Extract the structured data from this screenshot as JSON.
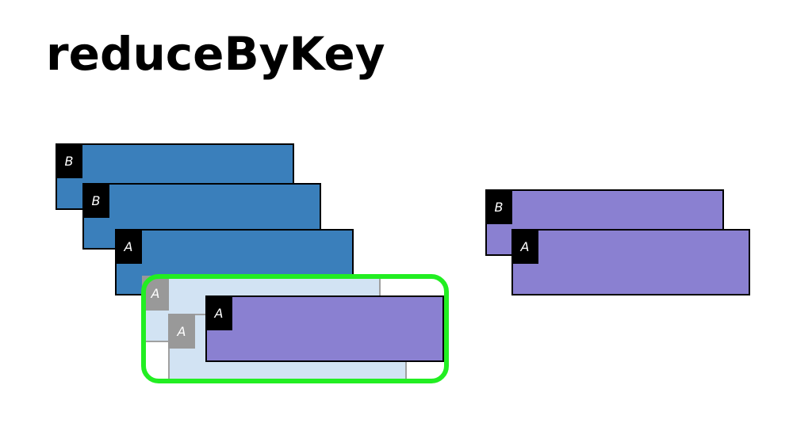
{
  "title": "reduceByKey",
  "colors": {
    "input_record": "#3a7fbb",
    "output_record": "#8a80d1",
    "ghost_record": "#d2e3f3",
    "highlight": "#22ee22",
    "key_label": "#000000",
    "ghost_key": "#999999"
  },
  "inputs": {
    "record_1": {
      "key": "B"
    },
    "record_2": {
      "key": "B"
    },
    "record_3": {
      "key": "A"
    }
  },
  "reduce_group": {
    "merged_1": {
      "key": "A"
    },
    "merged_2": {
      "key": "A"
    },
    "result": {
      "key": "A"
    }
  },
  "outputs": {
    "record_1": {
      "key": "B"
    },
    "record_2": {
      "key": "A"
    }
  }
}
